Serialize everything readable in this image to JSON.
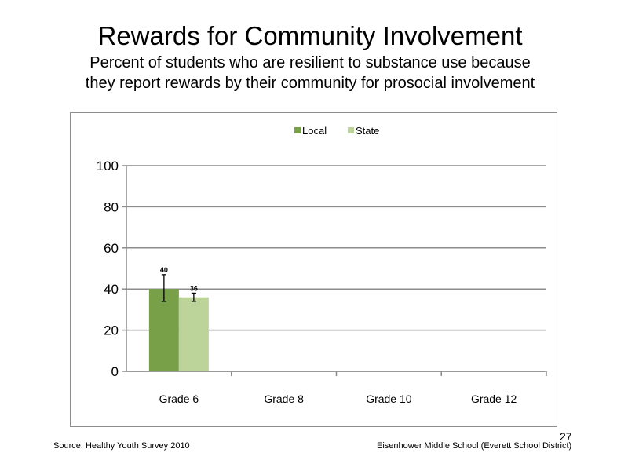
{
  "slide": {
    "title": "Rewards for Community Involvement",
    "subtitle_lines": [
      "Percent of students who are resilient to substance use because",
      "they report rewards by their community for prosocial involvement"
    ],
    "source": "Source: Healthy Youth Survey 2010",
    "school": "Eisenhower Middle School (Everett School District)",
    "page_number": "27"
  },
  "chart_data": {
    "type": "bar",
    "categories": [
      "Grade 6",
      "Grade 8",
      "Grade 10",
      "Grade 12"
    ],
    "series": [
      {
        "name": "Local",
        "color": "#77a049",
        "values": [
          40,
          null,
          null,
          null
        ],
        "error": [
          [
            34,
            47
          ],
          null,
          null,
          null
        ],
        "labels": [
          "40",
          "",
          "",
          ""
        ]
      },
      {
        "name": "State",
        "color": "#bcd49a",
        "values": [
          36,
          null,
          null,
          null
        ],
        "error": [
          [
            34,
            38
          ],
          null,
          null,
          null
        ],
        "labels": [
          "36",
          "",
          "",
          ""
        ]
      }
    ],
    "ylim": [
      0,
      100
    ],
    "yticks": [
      "0",
      "20",
      "40",
      "60",
      "80",
      "100"
    ],
    "grid": true,
    "legend": "top-center",
    "gridline_color": "#8c8c8c"
  }
}
